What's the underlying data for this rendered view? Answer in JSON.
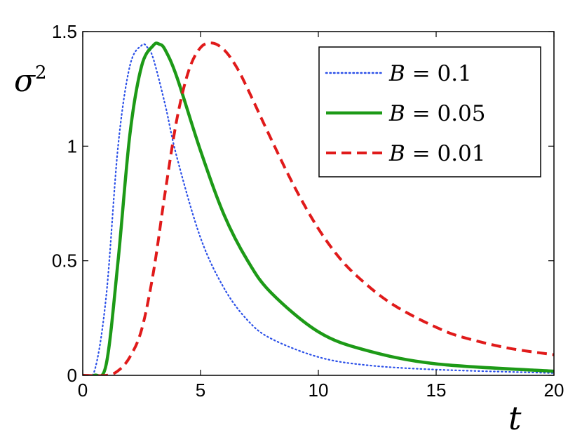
{
  "chart_data": {
    "type": "line",
    "xlabel": "t",
    "ylabel_base": "σ",
    "ylabel_sup": "2",
    "xlim": [
      0,
      20
    ],
    "ylim": [
      0,
      1.5
    ],
    "x_ticks": [
      0,
      5,
      10,
      15,
      20
    ],
    "x_tick_labels": [
      "0",
      "5",
      "10",
      "15",
      "20"
    ],
    "y_ticks": [
      0,
      0.5,
      1,
      1.5
    ],
    "y_tick_labels": [
      "0",
      "0.5",
      "1",
      "1.5"
    ],
    "grid": false,
    "legend_placement": "top-right",
    "series": [
      {
        "name": "B = 0.1",
        "name_var": "B",
        "name_value": "0.1",
        "color": "#2b50e8",
        "style": "dotted",
        "x": [
          0,
          0.5,
          1,
          1.5,
          2,
          2.5,
          2.75,
          3,
          3.5,
          4,
          5,
          6,
          7,
          8,
          10,
          12,
          15,
          20
        ],
        "y": [
          0,
          0.02,
          0.35,
          1.0,
          1.35,
          1.44,
          1.43,
          1.38,
          1.18,
          0.95,
          0.6,
          0.38,
          0.24,
          0.16,
          0.08,
          0.045,
          0.025,
          0.01
        ]
      },
      {
        "name": "B = 0.05",
        "name_var": "B",
        "name_value": "0.05",
        "color": "#1d9a17",
        "style": "solid",
        "x": [
          0,
          0.5,
          1,
          1.5,
          2,
          2.5,
          3,
          3.25,
          3.5,
          4,
          5,
          6,
          7,
          8,
          10,
          12,
          15,
          20
        ],
        "y": [
          0,
          0.0,
          0.05,
          0.5,
          1.05,
          1.35,
          1.44,
          1.445,
          1.42,
          1.3,
          0.98,
          0.7,
          0.5,
          0.36,
          0.19,
          0.11,
          0.05,
          0.018
        ]
      },
      {
        "name": "B = 0.01",
        "name_var": "B",
        "name_value": "0.01",
        "color": "#e01a1a",
        "style": "dashed",
        "x": [
          0,
          1,
          1.5,
          2,
          2.5,
          3,
          3.5,
          4,
          4.5,
          5,
          5.5,
          6,
          6.5,
          7,
          8,
          9,
          10,
          11,
          12,
          13,
          14,
          15,
          16,
          18,
          20
        ],
        "y": [
          0,
          0.0,
          0.02,
          0.08,
          0.2,
          0.45,
          0.8,
          1.12,
          1.33,
          1.43,
          1.45,
          1.42,
          1.35,
          1.25,
          1.03,
          0.82,
          0.64,
          0.5,
          0.4,
          0.32,
          0.26,
          0.21,
          0.17,
          0.12,
          0.09
        ]
      }
    ]
  }
}
